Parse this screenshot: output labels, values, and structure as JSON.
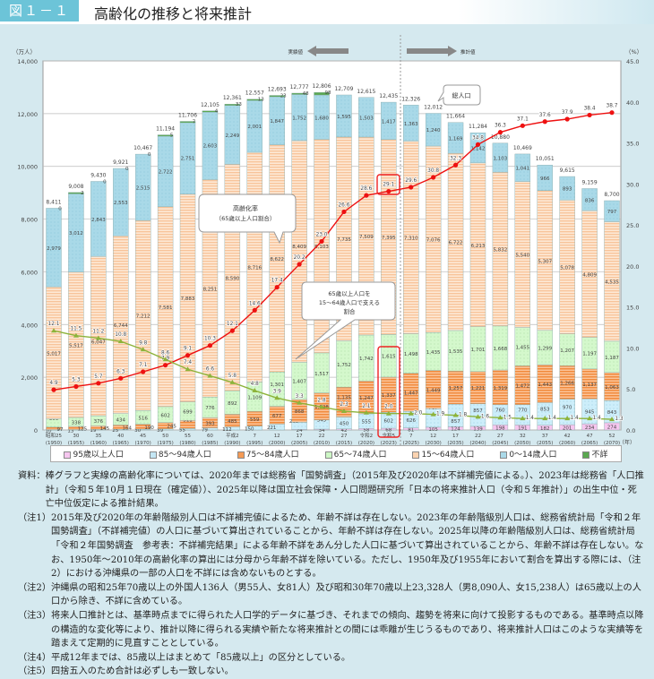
{
  "header": {
    "figure_no": "図１－１",
    "title": "高齢化の推移と将来推計"
  },
  "chart_data": {
    "type": "bar",
    "stacked": true,
    "title": "高齢化の推移と将来推計",
    "ylabel_left": "（万人）",
    "ylabel_right": "（%）",
    "xlabel": "（年）",
    "ylim_left": [
      0,
      14000
    ],
    "ylim_right": [
      0,
      45
    ],
    "yticks_left": [
      "0",
      "2,000",
      "4,000",
      "6,000",
      "8,000",
      "10,000",
      "12,000",
      "14,000"
    ],
    "yticks_right": [
      "0.0",
      "5.0",
      "10.0",
      "15.0",
      "20.0",
      "25.0",
      "30.0",
      "35.0",
      "40.0",
      "45.0"
    ],
    "grid": true,
    "legend_position": "bottom",
    "categories": [
      {
        "era": "昭和25",
        "year": "(1950)"
      },
      {
        "era": "30",
        "year": "(1955)"
      },
      {
        "era": "35",
        "year": "(1960)"
      },
      {
        "era": "40",
        "year": "(1965)"
      },
      {
        "era": "45",
        "year": "(1970)"
      },
      {
        "era": "50",
        "year": "(1975)"
      },
      {
        "era": "55",
        "year": "(1980)"
      },
      {
        "era": "60",
        "year": "(1985)"
      },
      {
        "era": "平成2",
        "year": "(1990)"
      },
      {
        "era": "7",
        "year": "(1995)"
      },
      {
        "era": "12",
        "year": "(2000)"
      },
      {
        "era": "17",
        "year": "(2005)"
      },
      {
        "era": "22",
        "year": "(2010)"
      },
      {
        "era": "27",
        "year": "(2015)"
      },
      {
        "era": "令和2",
        "year": "(2020)"
      },
      {
        "era": "令和5",
        "year": "(2023)"
      },
      {
        "era": "7",
        "year": "(2025)"
      },
      {
        "era": "12",
        "year": "(2030)"
      },
      {
        "era": "17",
        "year": "(2035)"
      },
      {
        "era": "22",
        "year": "(2040)"
      },
      {
        "era": "27",
        "year": "(2045)"
      },
      {
        "era": "32",
        "year": "(2050)"
      },
      {
        "era": "37",
        "year": "(2055)"
      },
      {
        "era": "42",
        "year": "(2060)"
      },
      {
        "era": "47",
        "year": "(2065)"
      },
      {
        "era": "52",
        "year": "(2070)"
      }
    ],
    "totals": [
      8411,
      9008,
      9430,
      9921,
      10467,
      11194,
      11706,
      12105,
      12361,
      12557,
      12693,
      12777,
      12806,
      12709,
      12615,
      12435,
      12326,
      12012,
      11664,
      11284,
      10880,
      10469,
      10051,
      9615,
      9159,
      8700
    ],
    "series": [
      {
        "name": "95歳以上人口",
        "color": "#f6c6ef",
        "values": [
          null,
          null,
          null,
          null,
          null,
          null,
          null,
          null,
          null,
          null,
          null,
          24,
          34,
          42,
          58,
          68,
          81,
          105,
          124,
          139,
          198,
          191,
          182,
          201,
          234,
          274
        ]
      },
      {
        "name": "85～94歳人口",
        "color": "#c4e7f5",
        "values": [
          10,
          13,
          19,
          25,
          30,
          39,
          55,
          79,
          112,
          150,
          221,
          269,
          345,
          450,
          555,
          602,
          626,
          707,
          857,
          857,
          760,
          770,
          853,
          970,
          945,
          843
        ]
      },
      {
        "name": "75～84歳人口",
        "color": "#f59a55",
        "values": [
          97,
          125,
          145,
          164,
          190,
          245,
          311,
          393,
          485,
          559,
          677,
          868,
          1028,
          1135,
          1247,
          1337,
          1447,
          1449,
          1257,
          1221,
          1319,
          1472,
          1443,
          1266,
          1137,
          1063
        ]
      },
      {
        "name": "65～74歳人口",
        "color": "#cdf7c5",
        "values": [
          309,
          338,
          376,
          434,
          516,
          602,
          699,
          776,
          892,
          1109,
          1301,
          1407,
          1517,
          1752,
          1742,
          1615,
          1498,
          1435,
          1535,
          1701,
          1668,
          1455,
          1299,
          1207,
          1197,
          1187
        ]
      },
      {
        "name": "15～64歳人口",
        "color": "#fbd3b0",
        "values": [
          5017,
          5517,
          6047,
          6744,
          7212,
          7581,
          7883,
          8251,
          8590,
          8716,
          8622,
          8409,
          8103,
          7735,
          7509,
          7395,
          7310,
          7076,
          6722,
          6213,
          5832,
          5540,
          5307,
          5078,
          4809,
          4535
        ]
      },
      {
        "name": "0～14歳人口",
        "color": "#aad9e8",
        "values": [
          2979,
          3012,
          2843,
          2553,
          2515,
          2722,
          2751,
          2603,
          2249,
          2001,
          1847,
          1752,
          1680,
          1595,
          1503,
          1417,
          1363,
          1240,
          1169,
          1142,
          1103,
          1041,
          966,
          893,
          836,
          797
        ]
      },
      {
        "name": "不詳",
        "color": "#5aa850",
        "values": [
          0,
          2,
          0,
          0,
          0,
          5,
          7,
          4,
          33,
          13,
          23,
          48,
          98,
          null,
          null,
          null,
          null,
          null,
          null,
          null,
          null,
          null,
          null,
          null,
          null,
          null
        ]
      }
    ],
    "lines": [
      {
        "name": "高齢化率（65歳以上人口割合）",
        "axis": "right",
        "color": "#ee1111",
        "values": [
          4.9,
          5.3,
          5.7,
          6.3,
          7.1,
          7.9,
          9.1,
          10.3,
          12.1,
          14.6,
          17.4,
          20.2,
          23.0,
          26.6,
          28.6,
          29.1,
          29.6,
          30.8,
          32.3,
          34.8,
          36.3,
          37.1,
          37.6,
          37.9,
          38.4,
          38.7
        ]
      },
      {
        "name": "65歳以上人口を15～64歳人口で支える割合",
        "axis": "right",
        "color": "#8db33a",
        "values": [
          12.1,
          11.5,
          11.2,
          10.8,
          9.8,
          8.6,
          7.4,
          6.6,
          5.8,
          4.8,
          3.9,
          3.3,
          2.8,
          2.3,
          2.1,
          2.0,
          2.0,
          1.9,
          1.8,
          1.6,
          1.5,
          1.4,
          1.4,
          1.4,
          1.4,
          1.3
        ]
      }
    ],
    "annotations": {
      "actual": "実績値",
      "projected": "推計値",
      "total_label": "総人口",
      "aging_label_1": "高齢化率",
      "aging_label_2": "（65歳以上人口割合）",
      "support_label_1": "65歳以上人口を",
      "support_label_2": "15～64歳人口で支える",
      "support_label_3": "割合"
    }
  },
  "notes": [
    {
      "key": "資料：",
      "text": "棒グラフと実線の高齢化率については、2020年までは総務省「国勢調査」（2015年及び2020年は不詳補完値による。）、2023年は総務省「人口推計」（令和５年10月１日現在（確定値））、2025年以降は国立社会保障・人口問題研究所「日本の将来推計人口（令和５年推計）」の出生中位・死亡中位仮定による推計結果。"
    },
    {
      "key": "（注1）",
      "text": "2015年及び2020年の年齢階級別人口は不詳補完値によるため、年齢不詳は存在しない。2023年の年齢階級別人口は、総務省統計局「令和２年国勢調査」（不詳補完値）の人口に基づいて算出されていることから、年齢不詳は存在しない。2025年以降の年齢階級別人口は、総務省統計局「令和２年国勢調査　参考表：不詳補完結果」による年齢不詳をあん分した人口に基づいて算出されていることから、年齢不詳は存在しない。なお、1950年～2010年の高齢化率の算出には分母から年齢不詳を除いている。ただし、1950年及び1955年において割合を算出する際には、（注2）における沖縄県の一部の人口を不詳には含めないものとする。"
    },
    {
      "key": "（注2）",
      "text": "沖縄県の昭和25年70歳以上の外国人136人（男55人、女81人）及び昭和30年70歳以上23,328人（男8,090人、女15,238人）は65歳以上の人口から除き、不詳に含めている。"
    },
    {
      "key": "（注3）",
      "text": "将来人口推計とは、基準時点までに得られた人口学的データに基づき、それまでの傾向、趨勢を将来に向けて投影するものである。基準時点以降の構造的な変化等により、推計以降に得られる実績や新たな将来推計との間には乖離が生じうるものであり、将来推計人口はこのような実績等を踏まえて定期的に見直すこととしている。"
    },
    {
      "key": "（注4）",
      "text": "平成12年までは、85歳以上はまとめて「85歳以上」の区分としている。"
    },
    {
      "key": "（注5）",
      "text": "四捨五入のため合計は必ずしも一致しない。"
    }
  ]
}
